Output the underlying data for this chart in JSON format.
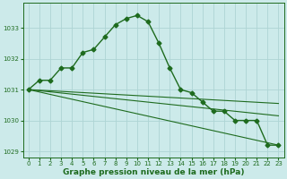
{
  "background_color": "#cceaea",
  "grid_color": "#aed4d4",
  "line_color": "#1e6b1e",
  "xlabel": "Graphe pression niveau de la mer (hPa)",
  "xlim": [
    -0.5,
    23.5
  ],
  "ylim": [
    1028.8,
    1033.8
  ],
  "yticks": [
    1029,
    1030,
    1031,
    1032,
    1033
  ],
  "xticks": [
    0,
    1,
    2,
    3,
    4,
    5,
    6,
    7,
    8,
    9,
    10,
    11,
    12,
    13,
    14,
    15,
    16,
    17,
    18,
    19,
    20,
    21,
    22,
    23
  ],
  "series_main": {
    "x": [
      0,
      1,
      2,
      3,
      4,
      5,
      6,
      7,
      8,
      9,
      10,
      11,
      12,
      13,
      14,
      15,
      16,
      17,
      18,
      19,
      20,
      21,
      22,
      23
    ],
    "y": [
      1031.0,
      1031.3,
      1031.3,
      1031.7,
      1031.7,
      1032.2,
      1032.3,
      1032.7,
      1033.1,
      1033.3,
      1033.4,
      1033.2,
      1032.5,
      1031.7,
      1031.0,
      1030.9,
      1030.6,
      1030.3,
      1030.3,
      1030.0,
      1030.0,
      1030.0,
      1029.2,
      1029.2
    ],
    "color": "#1e6b1e",
    "marker": "D",
    "markersize": 2.5,
    "linewidth": 1.0
  },
  "trend_lines": [
    {
      "x": [
        0,
        23
      ],
      "y": [
        1031.0,
        1030.55
      ],
      "color": "#1e6b1e",
      "linewidth": 0.8
    },
    {
      "x": [
        0,
        23
      ],
      "y": [
        1031.0,
        1030.15
      ],
      "color": "#1e6b1e",
      "linewidth": 0.8
    },
    {
      "x": [
        0,
        23
      ],
      "y": [
        1031.0,
        1029.2
      ],
      "color": "#1e6b1e",
      "linewidth": 0.8
    }
  ],
  "xlabel_fontsize": 6.5,
  "xlabel_color": "#1e6b1e",
  "tick_fontsize": 5.0,
  "tick_color": "#1e6b1e"
}
